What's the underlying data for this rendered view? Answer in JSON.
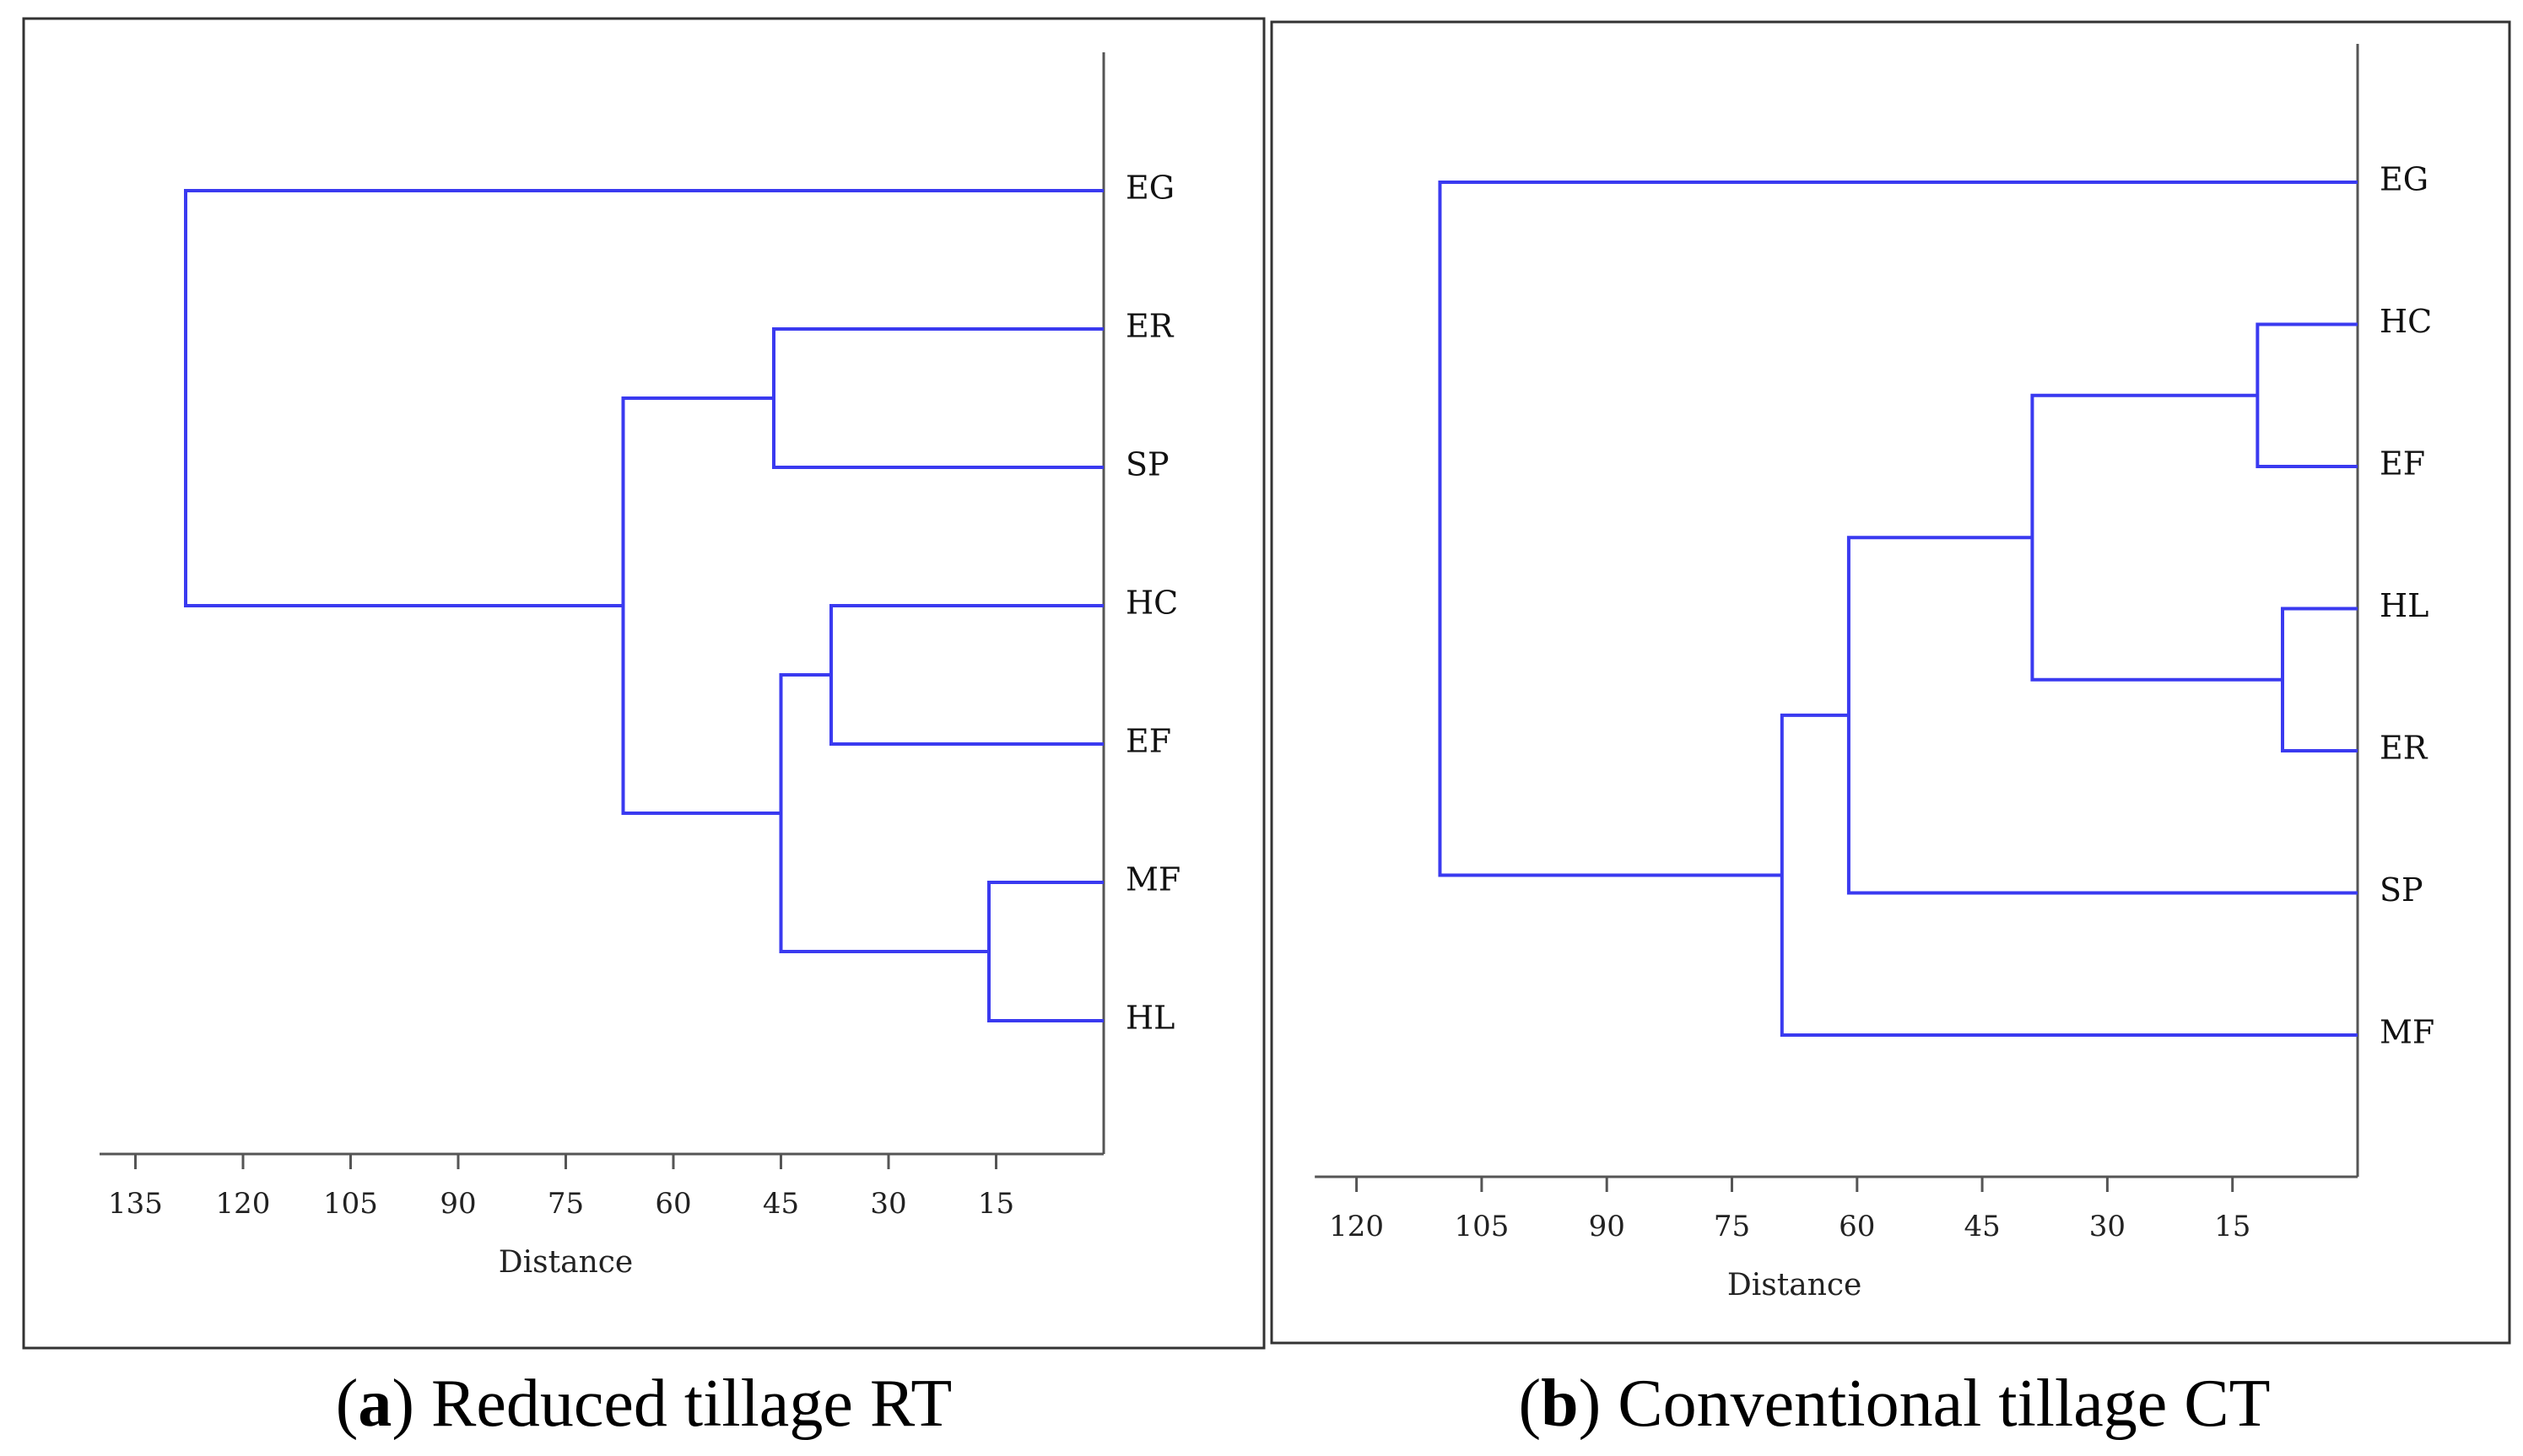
{
  "chart_data": [
    {
      "type": "dendrogram",
      "xlabel": "Distance",
      "xticks": [
        135,
        120,
        105,
        90,
        75,
        60,
        45,
        30,
        15
      ],
      "xlim": [
        140,
        0
      ],
      "caption": {
        "letter": "a",
        "text": "Reduced tillage RT"
      },
      "leaves": [
        "EG",
        "ER",
        "SP",
        "HC",
        "EF",
        "MF",
        "HL"
      ],
      "merges": [
        {
          "id": "c1",
          "left": "MF",
          "right": "HL",
          "distance": 16
        },
        {
          "id": "c2",
          "left": "HC",
          "right": "EF",
          "distance": 38
        },
        {
          "id": "c3",
          "left": "ER",
          "right": "SP",
          "distance": 46
        },
        {
          "id": "c4",
          "left": "c2",
          "right": "c1",
          "distance": 45
        },
        {
          "id": "c5",
          "left": "c3",
          "right": "c4",
          "distance": 67
        },
        {
          "id": "c6",
          "left": "EG",
          "right": "c5",
          "distance": 128
        }
      ]
    },
    {
      "type": "dendrogram",
      "xlabel": "Distance",
      "xticks": [
        120,
        105,
        90,
        75,
        60,
        45,
        30,
        15
      ],
      "xlim": [
        125,
        0
      ],
      "caption": {
        "letter": "b",
        "text": "Conventional tillage CT"
      },
      "leaves": [
        "EG",
        "HC",
        "EF",
        "HL",
        "ER",
        "SP",
        "MF"
      ],
      "merges": [
        {
          "id": "c1",
          "left": "HL",
          "right": "ER",
          "distance": 9
        },
        {
          "id": "c2",
          "left": "HC",
          "right": "EF",
          "distance": 12
        },
        {
          "id": "c3",
          "left": "c2",
          "right": "c1",
          "distance": 39
        },
        {
          "id": "c4",
          "left": "c3",
          "right": "SP",
          "distance": 61
        },
        {
          "id": "c5",
          "left": "c4",
          "right": "MF",
          "distance": 69
        },
        {
          "id": "c6",
          "left": "EG",
          "right": "c5",
          "distance": 110
        }
      ]
    }
  ]
}
